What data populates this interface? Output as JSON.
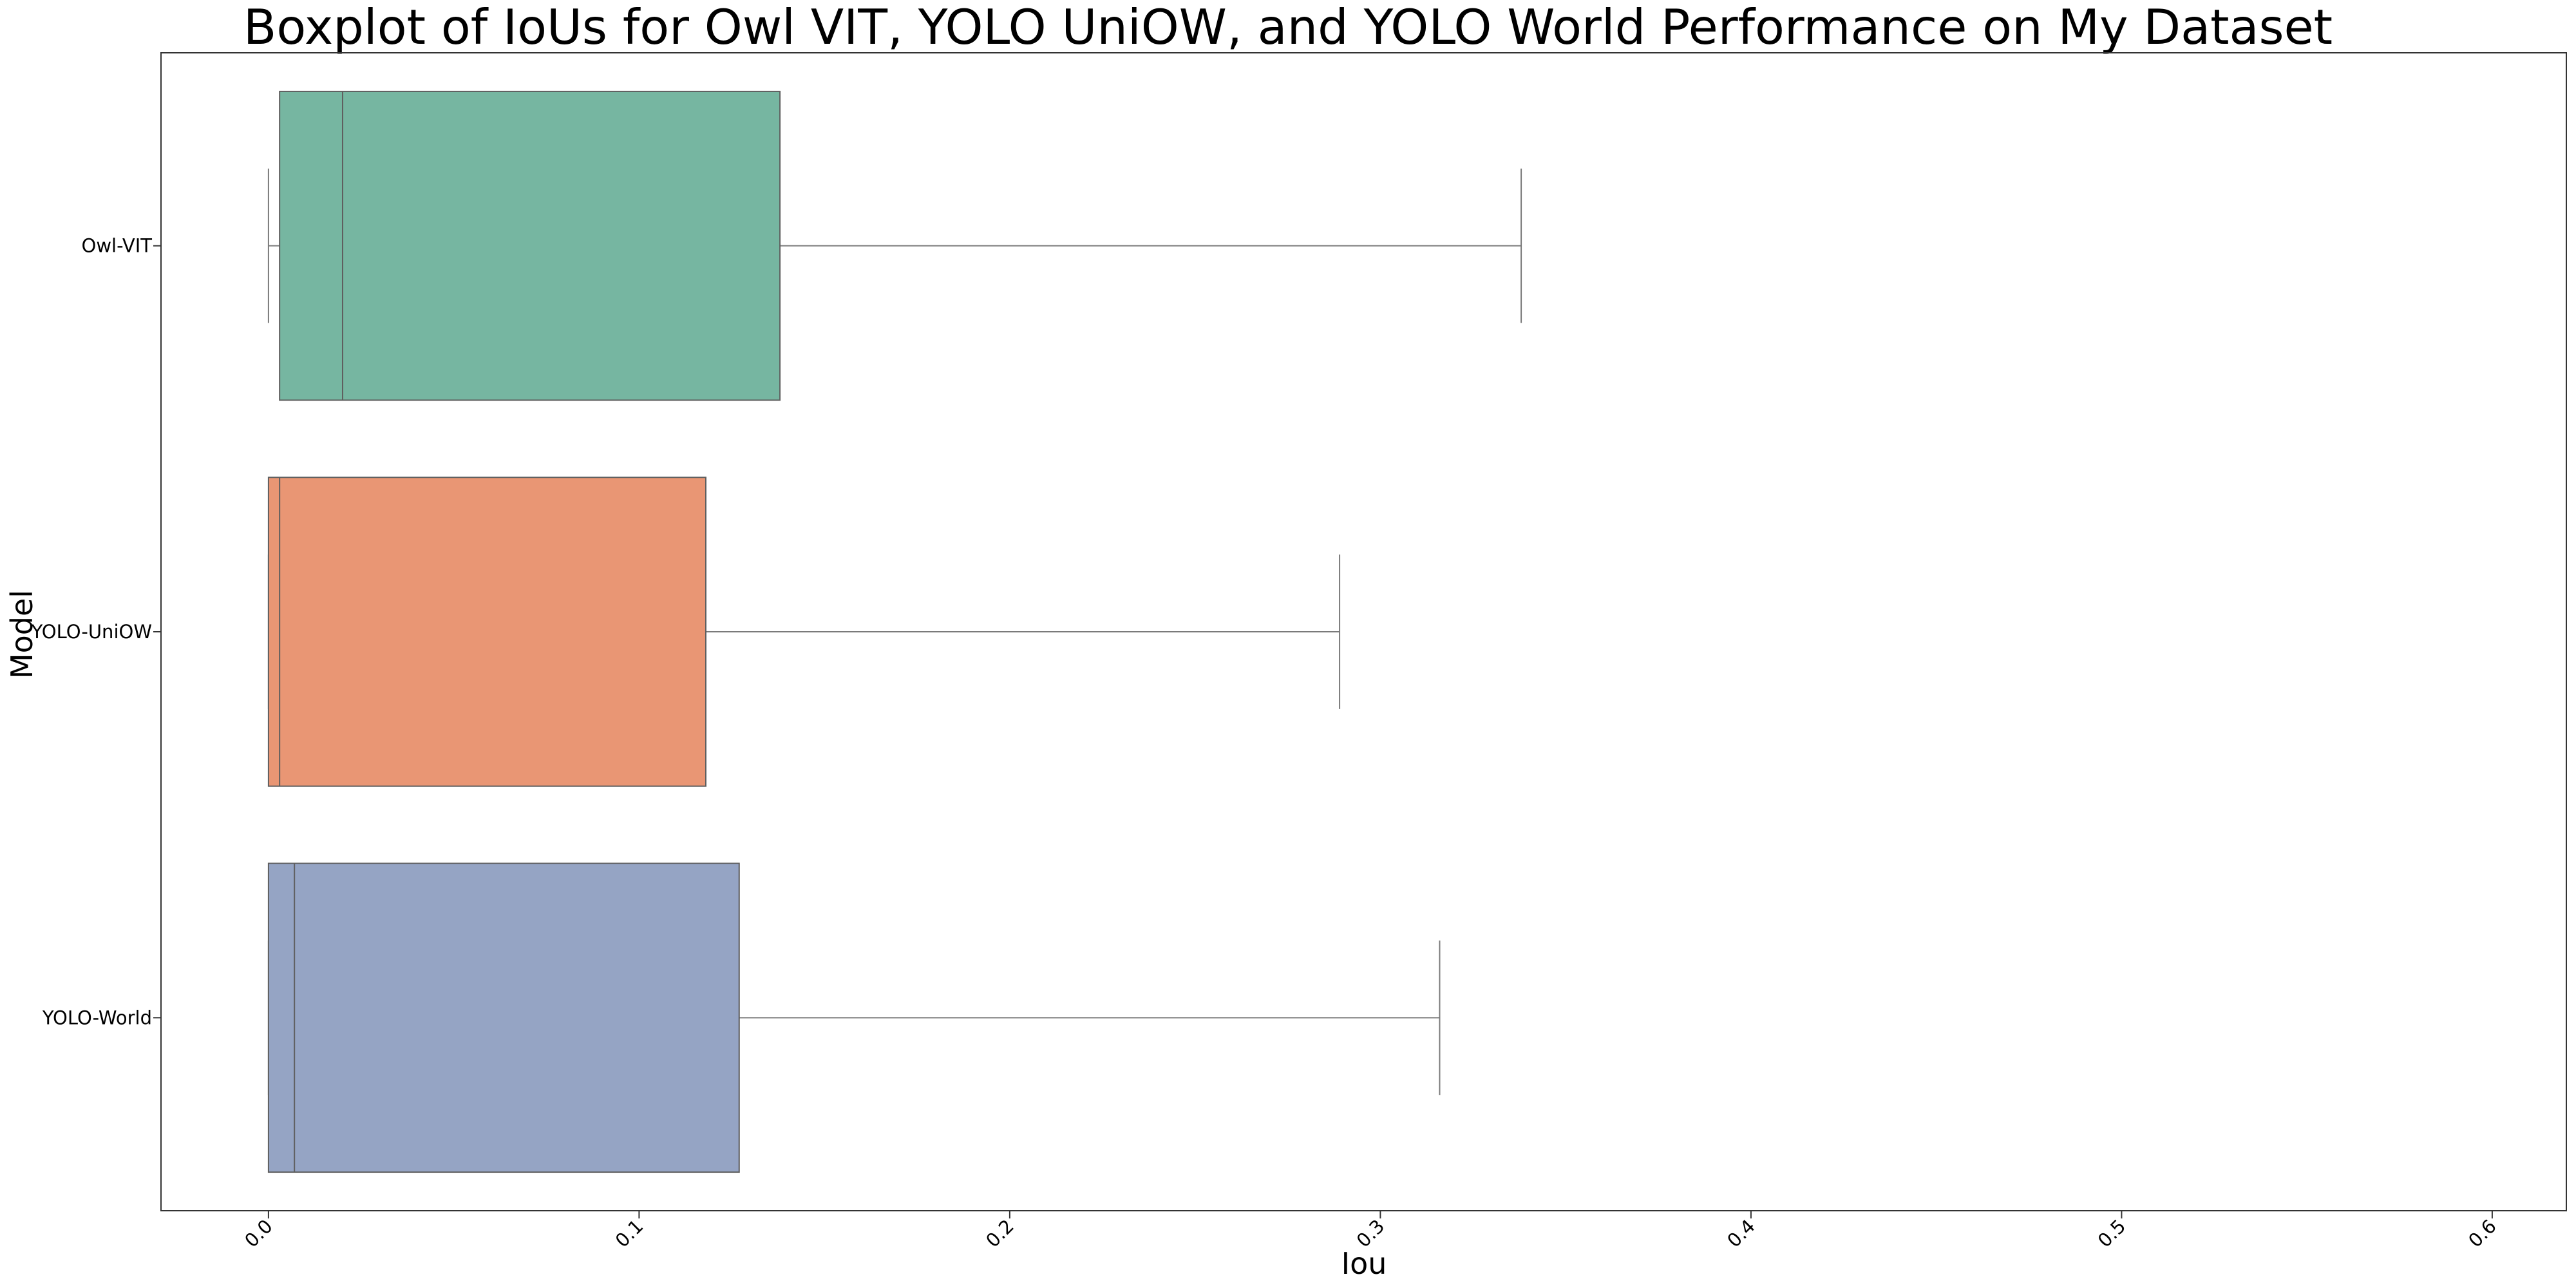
{
  "chart_data": {
    "type": "boxplot",
    "orientation": "horizontal",
    "title": "Boxplot of IoUs for Owl VIT, YOLO UniOW, and YOLO World Performance on My Dataset",
    "xlabel": "Iou",
    "ylabel": "Model",
    "xlim": [
      -0.029,
      0.62
    ],
    "xticks": [
      0.0,
      0.1,
      0.2,
      0.3,
      0.4,
      0.5,
      0.6
    ],
    "xtick_labels": [
      "0.0",
      "0.1",
      "0.2",
      "0.3",
      "0.4",
      "0.5",
      "0.6"
    ],
    "grid": false,
    "legend": "none",
    "categories": [
      "Owl-VIT",
      "YOLO-UniOW",
      "YOLO-World"
    ],
    "series": [
      {
        "category": "Owl-VIT",
        "whisker_low": 0.0,
        "q1": 0.003,
        "median": 0.02,
        "q3": 0.138,
        "whisker_high": 0.338,
        "color": "#76b6a1"
      },
      {
        "category": "YOLO-UniOW",
        "whisker_low": 0.0,
        "q1": 0.0,
        "median": 0.003,
        "q3": 0.118,
        "whisker_high": 0.289,
        "color": "#e99674"
      },
      {
        "category": "YOLO-World",
        "whisker_low": 0.0,
        "q1": 0.0,
        "median": 0.007,
        "q3": 0.127,
        "whisker_high": 0.316,
        "color": "#95a4c4"
      }
    ]
  }
}
